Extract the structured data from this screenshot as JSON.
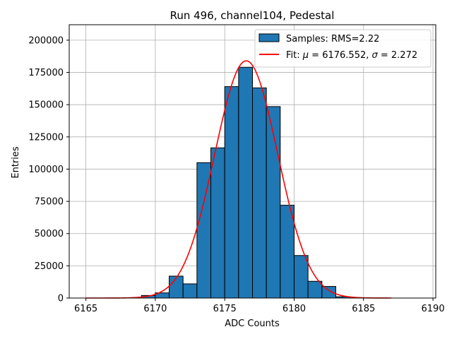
{
  "chart_data": {
    "type": "bar",
    "title": "Run 496, channel104, Pedestal",
    "xlabel": "ADC Counts",
    "ylabel": "Entries",
    "xlim": [
      6163.8,
      6190.2
    ],
    "ylim": [
      0,
      212000
    ],
    "xticks": [
      6165,
      6170,
      6175,
      6180,
      6185,
      6190
    ],
    "yticks": [
      0,
      25000,
      50000,
      75000,
      100000,
      125000,
      150000,
      175000,
      200000
    ],
    "grid": true,
    "legend_position": "upper right",
    "bar_color": "#1f77b4",
    "fit_color": "#ff0000",
    "histogram": {
      "name": "Samples: RMS=2.22",
      "bin_edges": [
        6169,
        6170,
        6171,
        6172,
        6173,
        6174,
        6175,
        6176,
        6177,
        6178,
        6179,
        6180,
        6181,
        6182,
        6183,
        6184
      ],
      "counts": [
        2000,
        4000,
        17000,
        11000,
        105000,
        116500,
        164000,
        179000,
        163000,
        148500,
        72000,
        33000,
        13000,
        9000,
        1000
      ]
    },
    "fit": {
      "name": "Fit: μ = 6176.552, σ = 2.272",
      "name_parts": {
        "prefix": "Fit: ",
        "mu": "μ",
        "mu_text": " = 6176.552, ",
        "sigma": "σ",
        "sigma_text": " = 2.272"
      },
      "function": "gaussian",
      "mu": 6176.552,
      "sigma": 2.272,
      "amplitude": 184000,
      "x_range": [
        6165,
        6187
      ]
    }
  }
}
